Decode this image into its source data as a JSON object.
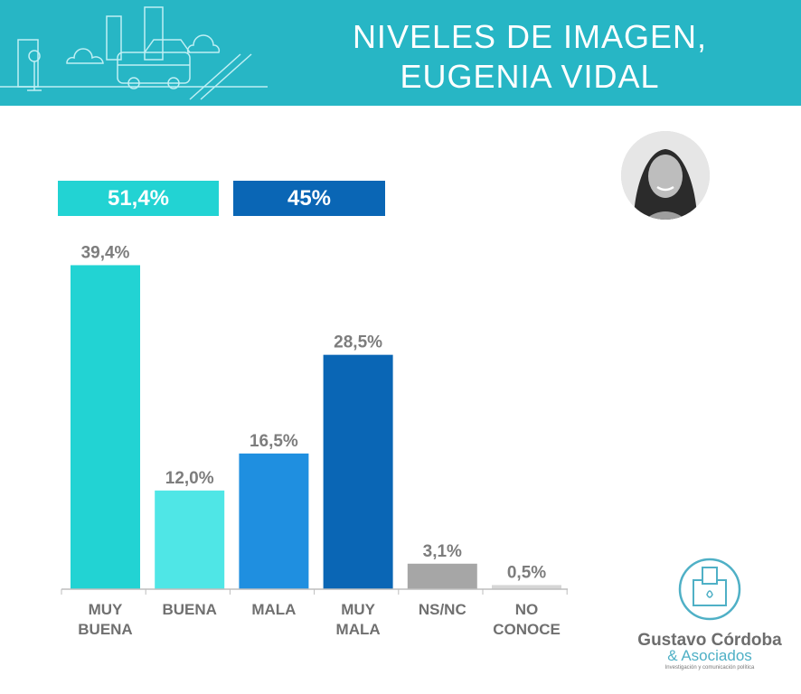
{
  "header": {
    "title_line1": "NIVELES DE IMAGEN,",
    "title_line2": "EUGENIA VIDAL",
    "background_color": "#27b6c5",
    "illustration": "city-street-bus-icon"
  },
  "photo": {
    "icon": "person-portrait"
  },
  "groups": {
    "positive_label": "51,4%",
    "negative_label": "45%",
    "positive_color": "#22d3d3",
    "negative_color": "#0a66b5"
  },
  "chart_data": {
    "type": "bar",
    "categories": [
      [
        "MUY",
        "BUENA"
      ],
      [
        "BUENA"
      ],
      [
        "MALA"
      ],
      [
        "MUY",
        "MALA"
      ],
      [
        "NS/NC"
      ],
      [
        "NO",
        "CONOCE"
      ]
    ],
    "values": [
      39.4,
      12.0,
      16.5,
      28.5,
      3.1,
      0.5
    ],
    "value_labels": [
      "39,4%",
      "12,0%",
      "16,5%",
      "28,5%",
      "3,1%",
      "0,5%"
    ],
    "colors": [
      "#22d3d3",
      "#4fe6e6",
      "#1f8fe0",
      "#0a66b5",
      "#a6a6a6",
      "#d6d6d6"
    ],
    "ylim": [
      0,
      40
    ],
    "grid": false
  },
  "logo": {
    "name": "Gustavo Córdoba",
    "sub": "& Asociados",
    "tagline": "Investigación y comunicación política",
    "icon": "ballot-box-icon"
  }
}
